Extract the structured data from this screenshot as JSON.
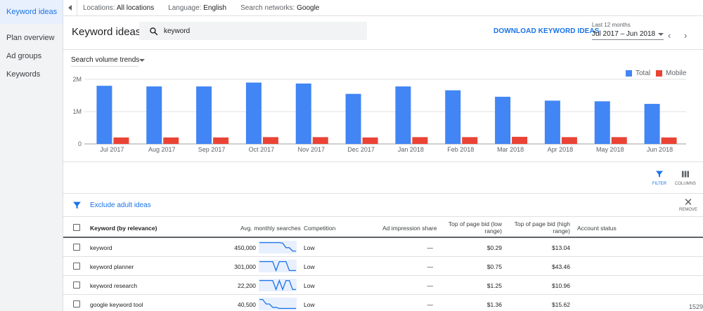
{
  "sidebar": {
    "items": [
      {
        "label": "Keyword ideas",
        "active": true
      },
      {
        "label": "Plan overview",
        "active": false
      },
      {
        "label": "Ad groups",
        "active": false
      },
      {
        "label": "Keywords",
        "active": false
      }
    ]
  },
  "topbar": {
    "locations_label": "Locations:",
    "locations_value": "All locations",
    "language_label": "Language:",
    "language_value": "English",
    "networks_label": "Search networks:",
    "networks_value": "Google"
  },
  "header": {
    "title": "Keyword ideas",
    "search_value": "keyword",
    "download_label": "DOWNLOAD KEYWORD IDEAS",
    "date_sub": "Last 12 months",
    "date_value": "Jul 2017 – Jun 2018"
  },
  "chart_toolbar": {
    "trend_select": "Search volume trends"
  },
  "colors": {
    "total": "#4285f4",
    "mobile": "#ea4335",
    "accent": "#1a73e8"
  },
  "chart_data": {
    "type": "bar",
    "categories": [
      "Jul 2017",
      "Aug 2017",
      "Sep 2017",
      "Oct 2017",
      "Nov 2017",
      "Dec 2017",
      "Jan 2018",
      "Feb 2018",
      "Mar 2018",
      "Apr 2018",
      "May 2018",
      "Jun 2018"
    ],
    "series": [
      {
        "name": "Total",
        "values": [
          1800000,
          1780000,
          1780000,
          1900000,
          1870000,
          1550000,
          1780000,
          1660000,
          1460000,
          1340000,
          1320000,
          1240000
        ]
      },
      {
        "name": "Mobile",
        "values": [
          200000,
          200000,
          200000,
          210000,
          210000,
          200000,
          210000,
          210000,
          220000,
          210000,
          210000,
          200000
        ]
      }
    ],
    "yticks": [
      "0",
      "1M",
      "2M"
    ],
    "ylim": [
      0,
      2000000
    ],
    "grid": true,
    "legend_position": "top-right"
  },
  "tools": {
    "filter_label": "FILTER",
    "columns_label": "COLUMNS",
    "remove_label": "REMOVE"
  },
  "exclude": {
    "text": "Exclude adult ideas"
  },
  "table": {
    "headers": {
      "keyword": "Keyword (by relevance)",
      "avg": "Avg. monthly searches",
      "competition": "Competition",
      "ad_share": "Ad impression share",
      "bid_low_1": "Top of page bid (low",
      "bid_low_2": "range)",
      "bid_high_1": "Top of page bid (high",
      "bid_high_2": "range)",
      "account": "Account status"
    },
    "rows": [
      {
        "keyword": "keyword",
        "avg": "450,000",
        "competition": "Low",
        "ad_share": "—",
        "bid_low": "$0.29",
        "bid_high": "$13.04",
        "trend": [
          0.9,
          0.9,
          0.9,
          0.9,
          0.9,
          0.9,
          0.9,
          0.85,
          0.45,
          0.45,
          0.15,
          0.15
        ]
      },
      {
        "keyword": "keyword planner",
        "avg": "301,000",
        "competition": "Low",
        "ad_share": "—",
        "bid_low": "$0.75",
        "bid_high": "$43.46",
        "trend": [
          0.9,
          0.9,
          0.9,
          0.9,
          0.9,
          0.1,
          0.9,
          0.9,
          0.9,
          0.1,
          0.1,
          0.1
        ]
      },
      {
        "keyword": "keyword research",
        "avg": "22,200",
        "competition": "Low",
        "ad_share": "—",
        "bid_low": "$1.25",
        "bid_high": "$10.96",
        "trend": [
          0.9,
          0.9,
          0.9,
          0.9,
          0.9,
          0.1,
          0.9,
          0.1,
          0.9,
          0.9,
          0.1,
          0.1
        ]
      },
      {
        "keyword": "google keyword tool",
        "avg": "40,500",
        "competition": "Low",
        "ad_share": "—",
        "bid_low": "$1.36",
        "bid_high": "$15.62",
        "trend": [
          0.9,
          0.9,
          0.5,
          0.5,
          0.2,
          0.2,
          0.1,
          0.1,
          0.1,
          0.1,
          0.1,
          0.1
        ]
      }
    ]
  },
  "page_count": "1529"
}
